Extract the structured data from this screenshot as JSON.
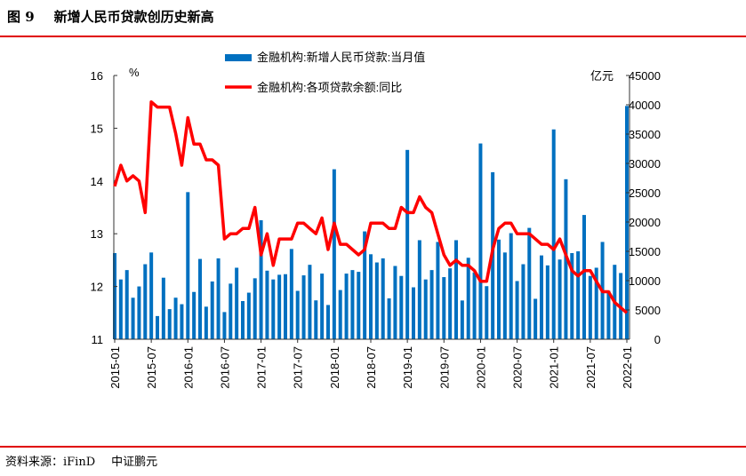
{
  "title": {
    "figure": "图 9",
    "text": "新增人民币贷款创历史新高"
  },
  "source": {
    "label": "资料来源：iFinD",
    "org": "中证鹏元"
  },
  "chart_data": {
    "type": "bar+line",
    "left_unit": "%",
    "right_unit": "亿元",
    "left_ylim": [
      11,
      16
    ],
    "left_ticks": [
      11,
      12,
      13,
      14,
      15,
      16
    ],
    "right_ylim": [
      0,
      45000
    ],
    "right_ticks": [
      0,
      5000,
      10000,
      15000,
      20000,
      25000,
      30000,
      35000,
      40000,
      45000
    ],
    "x_tick_labels": [
      "2015-01",
      "2015-07",
      "2016-01",
      "2016-07",
      "2017-01",
      "2017-07",
      "2018-01",
      "2018-07",
      "2019-01",
      "2019-07",
      "2020-01",
      "2020-07",
      "2021-01",
      "2021-07",
      "2022-01"
    ],
    "x_start": "2015-01",
    "x_end": "2022-01",
    "legend": "top-center",
    "colors": {
      "bar": "#0070c0",
      "line": "#ff0000"
    },
    "series": [
      {
        "name": "金融机构:新增人民币贷款:当月值",
        "type": "bar",
        "axis": "right",
        "values": [
          14700,
          10200,
          11800,
          7080,
          9008,
          12800,
          14800,
          3956,
          10500,
          5136,
          7089,
          5978,
          25100,
          8070,
          13700,
          5556,
          9855,
          13800,
          4636,
          9487,
          12200,
          6513,
          7946,
          10400,
          20300,
          11700,
          10200,
          11000,
          11100,
          15400,
          8255,
          10900,
          12700,
          6632,
          11200,
          5844,
          29000,
          8393,
          11200,
          11800,
          11500,
          18400,
          14500,
          13100,
          13800,
          6970,
          12500,
          10800,
          32300,
          8858,
          16900,
          10200,
          11800,
          16600,
          10600,
          12100,
          16900,
          6613,
          13900,
          11400,
          33400,
          9057,
          28500,
          17000,
          14800,
          18100,
          9927,
          12800,
          19000,
          6898,
          14300,
          12600,
          35800,
          13600,
          27300,
          14700,
          15000,
          21200,
          10800,
          12200,
          16600,
          8262,
          12700,
          11300,
          39800
        ]
      },
      {
        "name": "金融机构:各项贷款余额:同比",
        "type": "line",
        "axis": "left",
        "values": [
          13.9,
          14.3,
          14.0,
          14.1,
          14.0,
          13.4,
          15.5,
          15.4,
          15.4,
          15.4,
          14.9,
          14.3,
          15.2,
          14.7,
          14.7,
          14.4,
          14.4,
          14.3,
          12.9,
          13.0,
          13.0,
          13.1,
          13.1,
          13.5,
          12.6,
          13.0,
          12.4,
          12.9,
          12.9,
          12.9,
          13.2,
          13.2,
          13.1,
          13.0,
          13.3,
          12.7,
          13.2,
          12.8,
          12.8,
          12.7,
          12.6,
          12.7,
          13.2,
          13.2,
          13.2,
          13.1,
          13.1,
          13.5,
          13.4,
          13.4,
          13.7,
          13.5,
          13.4,
          13.0,
          12.6,
          12.4,
          12.5,
          12.4,
          12.4,
          12.3,
          12.1,
          12.1,
          12.7,
          13.1,
          13.2,
          13.2,
          13.0,
          13.0,
          13.0,
          12.9,
          12.8,
          12.8,
          12.7,
          12.9,
          12.6,
          12.3,
          12.2,
          12.3,
          12.3,
          12.1,
          11.9,
          11.9,
          11.7,
          11.6,
          11.5
        ]
      }
    ]
  }
}
